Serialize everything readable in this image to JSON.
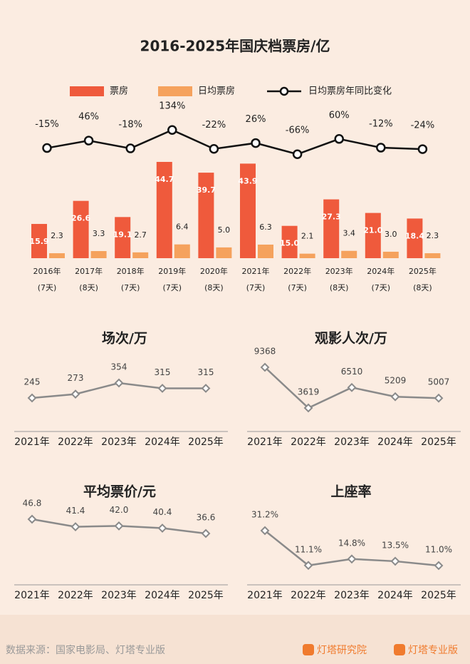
{
  "chart_data": [
    {
      "type": "bar",
      "title": "2016-2025年国庆档票房/亿",
      "categories": [
        "2016年",
        "2017年",
        "2018年",
        "2019年",
        "2020年",
        "2021年",
        "2022年",
        "2023年",
        "2024年",
        "2025年"
      ],
      "days": [
        "(7天)",
        "(8天)",
        "(7天)",
        "(7天)",
        "(8天)",
        "(7天)",
        "(7天)",
        "(8天)",
        "(7天)",
        "(8天)"
      ],
      "series": [
        {
          "name": "票房",
          "color": "#ef5a3c",
          "values": [
            15.9,
            26.6,
            19.1,
            44.7,
            39.7,
            43.9,
            15.0,
            27.3,
            21.0,
            18.4
          ],
          "value_labels": [
            "15.9",
            "26.6",
            "19.1",
            "44.7",
            "39.7",
            "43.9",
            "15.0",
            "27.3",
            "21.0",
            "18.4"
          ]
        },
        {
          "name": "日均票房",
          "color": "#f5a25d",
          "values": [
            2.3,
            3.3,
            2.7,
            6.4,
            5.0,
            6.3,
            2.1,
            3.4,
            3.0,
            2.3
          ],
          "value_labels": [
            "2.3",
            "3.3",
            "2.7",
            "6.4",
            "5.0",
            "6.3",
            "2.1",
            "3.4",
            "3.0",
            "2.3"
          ]
        },
        {
          "name": "日均票房年同比变化",
          "type": "line",
          "color": "#111111",
          "values": [
            -15,
            46,
            -18,
            134,
            -22,
            26,
            -66,
            60,
            -12,
            -24
          ],
          "value_labels": [
            "-15%",
            "46%",
            "-18%",
            "134%",
            "-22%",
            "26%",
            "-66%",
            "60%",
            "-12%",
            "-24%"
          ]
        }
      ]
    },
    {
      "type": "line",
      "title": "场次/万",
      "categories": [
        "2021年",
        "2022年",
        "2023年",
        "2024年",
        "2025年"
      ],
      "values": [
        245,
        273,
        354,
        315,
        315
      ],
      "color": "#8a8a8a"
    },
    {
      "type": "line",
      "title": "观影人次/万",
      "categories": [
        "2021年",
        "2022年",
        "2023年",
        "2024年",
        "2025年"
      ],
      "values": [
        9368,
        3619,
        6510,
        5209,
        5007
      ],
      "color": "#8a8a8a"
    },
    {
      "type": "line",
      "title": "平均票价/元",
      "categories": [
        "2021年",
        "2022年",
        "2023年",
        "2024年",
        "2025年"
      ],
      "values": [
        46.8,
        41.4,
        42.0,
        40.4,
        36.6
      ],
      "value_labels": [
        "46.8",
        "41.4",
        "42.0",
        "40.4",
        "36.6"
      ],
      "color": "#8a8a8a"
    },
    {
      "type": "line",
      "title": "上座率",
      "categories": [
        "2021年",
        "2022年",
        "2023年",
        "2024年",
        "2025年"
      ],
      "values": [
        31.2,
        11.1,
        14.8,
        13.5,
        11.0
      ],
      "value_labels": [
        "31.2%",
        "11.1%",
        "14.8%",
        "13.5%",
        "11.0%"
      ],
      "color": "#8a8a8a"
    }
  ],
  "footer": {
    "source": "数据来源：国家电影局、灯塔专业版",
    "brands": [
      "灯塔研究院",
      "灯塔专业版"
    ]
  }
}
